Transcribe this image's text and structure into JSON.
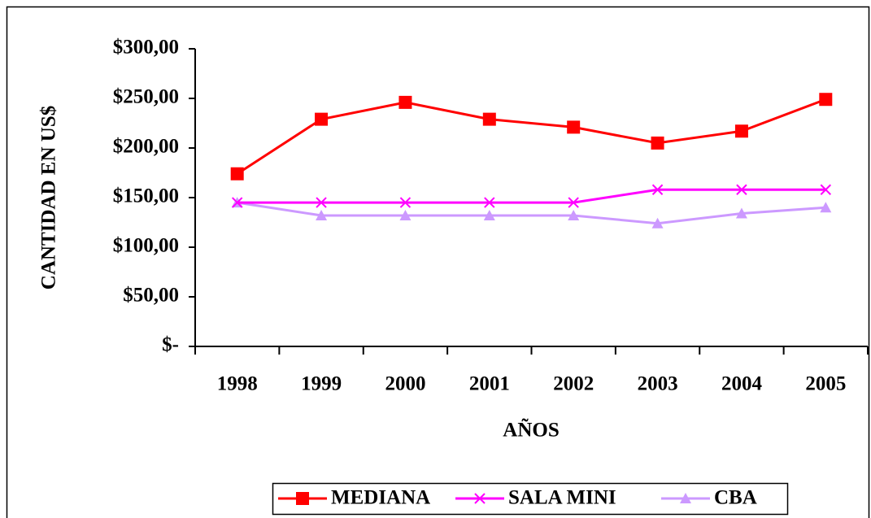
{
  "chart_data": {
    "type": "line",
    "x_label": "AÑOS",
    "y_label": "CANTIDAD EN US$",
    "categories": [
      "1998",
      "1999",
      "2000",
      "2001",
      "2002",
      "2003",
      "2004",
      "2005"
    ],
    "series": [
      {
        "name": "MEDIANA",
        "color": "#ff0000",
        "marker": "square",
        "values": [
          174,
          229,
          246,
          229,
          221,
          205,
          217,
          249
        ]
      },
      {
        "name": "SALA MINI",
        "color": "#ff00ff",
        "marker": "x",
        "values": [
          145,
          145,
          145,
          145,
          145,
          158,
          158,
          158
        ]
      },
      {
        "name": "CBA",
        "color": "#cc99ff",
        "marker": "triangle",
        "values": [
          145,
          132,
          132,
          132,
          132,
          124,
          134,
          140
        ]
      }
    ],
    "ylim": [
      0,
      300
    ],
    "yticks": [
      {
        "value": 0,
        "label": "$-"
      },
      {
        "value": 50,
        "label": "$50,00"
      },
      {
        "value": 100,
        "label": "$100,00"
      },
      {
        "value": 150,
        "label": "$150,00"
      },
      {
        "value": 200,
        "label": "$200,00"
      },
      {
        "value": 250,
        "label": "$250,00"
      },
      {
        "value": 300,
        "label": "$300,00"
      }
    ],
    "legend": "bottom",
    "grid": false
  }
}
